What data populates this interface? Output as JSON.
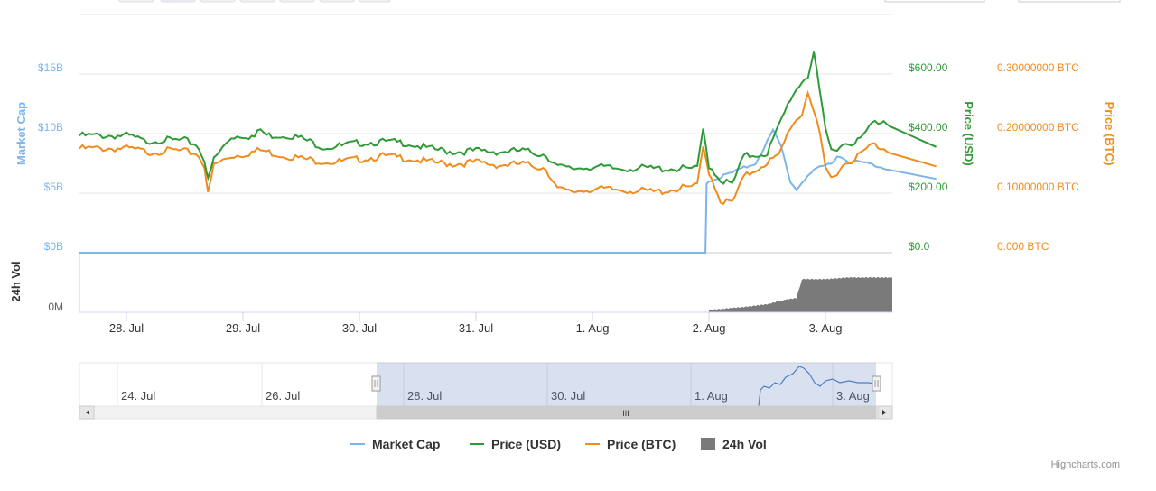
{
  "chart_data": {
    "type": "line",
    "x_ticks": [
      "28. Jul",
      "29. Jul",
      "30. Jul",
      "31. Jul",
      "1. Aug",
      "2. Aug",
      "3. Aug"
    ],
    "navigator_ticks": [
      "24. Jul",
      "26. Jul",
      "28. Jul",
      "30. Jul",
      "1. Aug",
      "3. Aug"
    ],
    "axes": {
      "market_cap": {
        "title": "Market Cap",
        "ticks": [
          "$0B",
          "$5B",
          "$10B",
          "$15B"
        ],
        "range": [
          0,
          15
        ]
      },
      "price_usd": {
        "title": "Price (USD)",
        "ticks": [
          "$0.0",
          "$200.00",
          "$400.00",
          "$600.00"
        ],
        "range": [
          0,
          600
        ]
      },
      "price_btc": {
        "title": "Price (BTC)",
        "ticks": [
          "0.000 BTC",
          "0.10000000 BTC",
          "0.20000000 BTC",
          "0.30000000 BTC"
        ],
        "range": [
          0,
          0.3
        ]
      },
      "volume": {
        "title": "24h Vol",
        "ticks": [
          "0M"
        ]
      }
    },
    "x_range_days": [
      0,
      6.95
    ],
    "series": [
      {
        "name": "Market Cap",
        "color": "#7cb5ec",
        "points": [
          [
            0,
            0
          ],
          [
            1,
            0
          ],
          [
            2,
            0
          ],
          [
            3,
            0
          ],
          [
            4,
            0
          ],
          [
            4.97,
            0
          ],
          [
            4.98,
            6.0
          ],
          [
            5.2,
            6.8
          ],
          [
            5.4,
            7.6
          ],
          [
            5.55,
            10.3
          ],
          [
            5.62,
            9.0
          ],
          [
            5.7,
            6.0
          ],
          [
            5.75,
            5.4
          ],
          [
            5.85,
            6.6
          ],
          [
            5.95,
            7.2
          ],
          [
            6.05,
            7.6
          ],
          [
            6.1,
            8.2
          ],
          [
            6.2,
            7.8
          ],
          [
            6.35,
            7.6
          ],
          [
            6.5,
            7.2
          ],
          [
            6.7,
            6.9
          ],
          [
            6.85,
            6.5
          ],
          [
            6.95,
            6.2
          ]
        ]
      },
      {
        "name": "Price (USD)",
        "color": "#2f9a37",
        "points": [
          [
            0,
            399
          ],
          [
            0.05,
            395
          ],
          [
            0.15,
            380
          ],
          [
            0.3,
            385
          ],
          [
            0.5,
            382
          ],
          [
            0.6,
            370
          ],
          [
            0.67,
            320
          ],
          [
            0.7,
            248
          ],
          [
            0.75,
            320
          ],
          [
            0.9,
            395
          ],
          [
            1.0,
            400
          ],
          [
            1.1,
            395
          ],
          [
            1.15,
            420
          ],
          [
            1.2,
            400
          ],
          [
            1.4,
            400
          ],
          [
            1.5,
            390
          ],
          [
            1.6,
            375
          ],
          [
            1.7,
            360
          ],
          [
            1.85,
            365
          ],
          [
            2.0,
            375
          ],
          [
            2.2,
            378
          ],
          [
            2.4,
            375
          ],
          [
            2.6,
            355
          ],
          [
            2.8,
            345
          ],
          [
            3.0,
            348
          ],
          [
            3.2,
            345
          ],
          [
            3.4,
            348
          ],
          [
            3.6,
            335
          ],
          [
            3.7,
            295
          ],
          [
            3.8,
            288
          ],
          [
            4.0,
            295
          ],
          [
            4.2,
            288
          ],
          [
            4.4,
            290
          ],
          [
            4.55,
            288
          ],
          [
            4.9,
            288
          ],
          [
            4.95,
            420
          ],
          [
            5.0,
            300
          ],
          [
            5.1,
            250
          ],
          [
            5.2,
            235
          ],
          [
            5.3,
            330
          ],
          [
            5.5,
            340
          ],
          [
            5.6,
            430
          ],
          [
            5.7,
            525
          ],
          [
            5.8,
            583
          ],
          [
            5.85,
            600
          ],
          [
            5.9,
            680
          ],
          [
            5.95,
            540
          ],
          [
            6.0,
            420
          ],
          [
            6.05,
            350
          ],
          [
            6.15,
            370
          ],
          [
            6.3,
            385
          ],
          [
            6.4,
            440
          ],
          [
            6.5,
            450
          ],
          [
            6.6,
            430
          ],
          [
            6.7,
            420
          ],
          [
            6.8,
            410
          ],
          [
            6.9,
            400
          ],
          [
            6.95,
            355
          ]
        ]
      },
      {
        "name": "Price (BTC)",
        "color": "#f08c1e",
        "points": [
          [
            0,
            0.178
          ],
          [
            0.2,
            0.172
          ],
          [
            0.4,
            0.175
          ],
          [
            0.6,
            0.17
          ],
          [
            0.67,
            0.15
          ],
          [
            0.7,
            0.1
          ],
          [
            0.75,
            0.15
          ],
          [
            0.9,
            0.165
          ],
          [
            1.0,
            0.168
          ],
          [
            1.15,
            0.175
          ],
          [
            1.3,
            0.168
          ],
          [
            1.6,
            0.158
          ],
          [
            1.8,
            0.155
          ],
          [
            2.0,
            0.16
          ],
          [
            2.2,
            0.165
          ],
          [
            2.4,
            0.162
          ],
          [
            2.6,
            0.155
          ],
          [
            2.8,
            0.152
          ],
          [
            3.0,
            0.155
          ],
          [
            3.2,
            0.15
          ],
          [
            3.4,
            0.152
          ],
          [
            3.6,
            0.145
          ],
          [
            3.7,
            0.11
          ],
          [
            3.8,
            0.105
          ],
          [
            4.0,
            0.11
          ],
          [
            4.3,
            0.108
          ],
          [
            4.55,
            0.105
          ],
          [
            4.9,
            0.115
          ],
          [
            4.95,
            0.18
          ],
          [
            5.0,
            0.14
          ],
          [
            5.1,
            0.09
          ],
          [
            5.2,
            0.087
          ],
          [
            5.3,
            0.13
          ],
          [
            5.5,
            0.155
          ],
          [
            5.6,
            0.165
          ],
          [
            5.7,
            0.215
          ],
          [
            5.8,
            0.237
          ],
          [
            5.85,
            0.275
          ],
          [
            5.9,
            0.24
          ],
          [
            5.95,
            0.2
          ],
          [
            6.0,
            0.145
          ],
          [
            6.05,
            0.128
          ],
          [
            6.15,
            0.15
          ],
          [
            6.3,
            0.168
          ],
          [
            6.4,
            0.185
          ],
          [
            6.5,
            0.178
          ],
          [
            6.6,
            0.172
          ],
          [
            6.75,
            0.165
          ],
          [
            6.9,
            0.155
          ],
          [
            6.95,
            0.145
          ]
        ]
      },
      {
        "name": "24h Vol",
        "color": "#7a7a7a",
        "points": [
          [
            5.0,
            0.05
          ],
          [
            5.3,
            0.14
          ],
          [
            5.5,
            0.22
          ],
          [
            5.65,
            0.35
          ],
          [
            5.75,
            0.4
          ],
          [
            5.8,
            0.95
          ],
          [
            6.0,
            0.95
          ],
          [
            6.2,
            1.0
          ],
          [
            6.5,
            1.0
          ],
          [
            6.7,
            1.0
          ],
          [
            6.85,
            1.05
          ],
          [
            6.95,
            0.8
          ]
        ]
      }
    ],
    "legend": [
      "Market Cap",
      "Price (USD)",
      "Price (BTC)",
      "24h Vol"
    ],
    "legend_position": "bottom-center",
    "grid": true
  },
  "scrollbar_grip": "III",
  "credits": "Highcharts.com"
}
